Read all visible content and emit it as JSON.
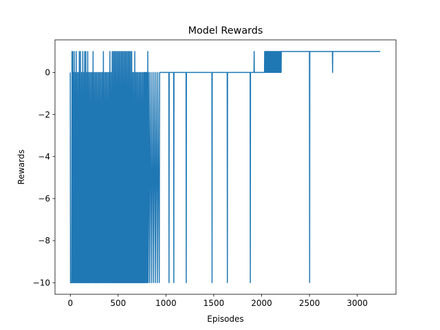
{
  "chart_data": {
    "type": "line",
    "title": "Model Rewards",
    "xlabel": "Episodes",
    "ylabel": "Rewards",
    "xlim": [
      -160,
      3405
    ],
    "ylim": [
      -10.55,
      1.55
    ],
    "xticks": [
      0,
      500,
      1000,
      1500,
      2000,
      2500,
      3000
    ],
    "xtick_labels": [
      "0",
      "500",
      "1000",
      "1500",
      "2000",
      "2500",
      "3000"
    ],
    "yticks": [
      -10,
      -8,
      -6,
      -4,
      -2,
      0
    ],
    "ytick_labels": [
      "−10",
      "−8",
      "−6",
      "−4",
      "−2",
      "0"
    ],
    "grid": false,
    "legend": "none",
    "series": [
      {
        "color": "#1f77b4",
        "points": [
          [
            0,
            0
          ],
          [
            2,
            -10
          ],
          [
            5,
            -10
          ],
          [
            10,
            -10
          ],
          [
            14,
            -10
          ],
          [
            18,
            1
          ],
          [
            22,
            -10
          ],
          [
            26,
            1
          ],
          [
            30,
            -10
          ],
          [
            34,
            0
          ],
          [
            38,
            -10
          ],
          [
            42,
            1
          ],
          [
            46,
            -10
          ],
          [
            50,
            -10
          ],
          [
            54,
            0
          ],
          [
            58,
            -10
          ],
          [
            62,
            1
          ],
          [
            66,
            -10
          ],
          [
            70,
            -10
          ],
          [
            74,
            0
          ],
          [
            78,
            -10
          ],
          [
            82,
            -10
          ],
          [
            86,
            0
          ],
          [
            90,
            -10
          ],
          [
            94,
            1
          ],
          [
            98,
            -10
          ],
          [
            102,
            -10
          ],
          [
            106,
            1
          ],
          [
            110,
            -10
          ],
          [
            114,
            -10
          ],
          [
            118,
            0
          ],
          [
            122,
            -10
          ],
          [
            126,
            -10
          ],
          [
            130,
            1
          ],
          [
            134,
            -10
          ],
          [
            138,
            -10
          ],
          [
            142,
            0
          ],
          [
            146,
            -10
          ],
          [
            150,
            1
          ],
          [
            154,
            -10
          ],
          [
            158,
            -10
          ],
          [
            162,
            1
          ],
          [
            166,
            -10
          ],
          [
            170,
            -10
          ],
          [
            174,
            0
          ],
          [
            178,
            -10
          ],
          [
            182,
            1
          ],
          [
            186,
            -10
          ],
          [
            190,
            -10
          ],
          [
            194,
            0
          ],
          [
            198,
            -10
          ],
          [
            202,
            -10
          ],
          [
            206,
            0
          ],
          [
            210,
            -10
          ],
          [
            214,
            -10
          ],
          [
            218,
            0
          ],
          [
            222,
            -10
          ],
          [
            226,
            -10
          ],
          [
            230,
            0
          ],
          [
            234,
            -10
          ],
          [
            238,
            1
          ],
          [
            242,
            -10
          ],
          [
            246,
            -10
          ],
          [
            250,
            0
          ],
          [
            254,
            -10
          ],
          [
            258,
            -10
          ],
          [
            262,
            0
          ],
          [
            266,
            -10
          ],
          [
            270,
            -10
          ],
          [
            274,
            0
          ],
          [
            278,
            -10
          ],
          [
            282,
            -10
          ],
          [
            286,
            0
          ],
          [
            290,
            -10
          ],
          [
            294,
            -10
          ],
          [
            298,
            0
          ],
          [
            302,
            -10
          ],
          [
            306,
            -10
          ],
          [
            310,
            0
          ],
          [
            314,
            -10
          ],
          [
            318,
            -10
          ],
          [
            322,
            0
          ],
          [
            326,
            -10
          ],
          [
            330,
            -10
          ],
          [
            334,
            0
          ],
          [
            338,
            -10
          ],
          [
            342,
            -10
          ],
          [
            346,
            1
          ],
          [
            350,
            -10
          ],
          [
            354,
            -10
          ],
          [
            358,
            0
          ],
          [
            362,
            -10
          ],
          [
            366,
            -10
          ],
          [
            370,
            0
          ],
          [
            374,
            -10
          ],
          [
            378,
            -10
          ],
          [
            382,
            0
          ],
          [
            386,
            -10
          ],
          [
            390,
            -10
          ],
          [
            394,
            0
          ],
          [
            398,
            -10
          ],
          [
            402,
            -10
          ],
          [
            406,
            0
          ],
          [
            410,
            -10
          ],
          [
            414,
            1
          ],
          [
            418,
            -10
          ],
          [
            422,
            -10
          ],
          [
            426,
            0
          ],
          [
            430,
            -10
          ],
          [
            434,
            -10
          ],
          [
            438,
            1
          ],
          [
            442,
            -10
          ],
          [
            446,
            -10
          ],
          [
            450,
            1
          ],
          [
            454,
            -10
          ],
          [
            458,
            -10
          ],
          [
            462,
            1
          ],
          [
            466,
            -10
          ],
          [
            470,
            -10
          ],
          [
            474,
            1
          ],
          [
            478,
            -10
          ],
          [
            482,
            -10
          ],
          [
            486,
            1
          ],
          [
            490,
            -10
          ],
          [
            494,
            -10
          ],
          [
            498,
            1
          ],
          [
            502,
            -10
          ],
          [
            506,
            -10
          ],
          [
            510,
            1
          ],
          [
            514,
            -10
          ],
          [
            518,
            -10
          ],
          [
            522,
            1
          ],
          [
            526,
            -10
          ],
          [
            530,
            -10
          ],
          [
            534,
            1
          ],
          [
            538,
            -10
          ],
          [
            542,
            -10
          ],
          [
            546,
            1
          ],
          [
            550,
            -10
          ],
          [
            554,
            -10
          ],
          [
            558,
            1
          ],
          [
            562,
            -10
          ],
          [
            566,
            -10
          ],
          [
            570,
            1
          ],
          [
            574,
            -10
          ],
          [
            578,
            -10
          ],
          [
            582,
            1
          ],
          [
            586,
            -10
          ],
          [
            590,
            -10
          ],
          [
            594,
            1
          ],
          [
            598,
            -10
          ],
          [
            602,
            -10
          ],
          [
            606,
            1
          ],
          [
            610,
            -10
          ],
          [
            614,
            -10
          ],
          [
            618,
            1
          ],
          [
            622,
            -10
          ],
          [
            626,
            -10
          ],
          [
            630,
            1
          ],
          [
            634,
            -10
          ],
          [
            638,
            -10
          ],
          [
            642,
            1
          ],
          [
            646,
            -10
          ],
          [
            650,
            -10
          ],
          [
            654,
            0
          ],
          [
            658,
            -10
          ],
          [
            662,
            -10
          ],
          [
            666,
            0
          ],
          [
            670,
            -10
          ],
          [
            674,
            1
          ],
          [
            678,
            -10
          ],
          [
            682,
            -10
          ],
          [
            686,
            0
          ],
          [
            690,
            -10
          ],
          [
            694,
            -10
          ],
          [
            698,
            0
          ],
          [
            702,
            -10
          ],
          [
            706,
            -10
          ],
          [
            710,
            0
          ],
          [
            714,
            -10
          ],
          [
            718,
            -10
          ],
          [
            722,
            0
          ],
          [
            726,
            -10
          ],
          [
            730,
            -10
          ],
          [
            734,
            0
          ],
          [
            738,
            -10
          ],
          [
            742,
            -10
          ],
          [
            746,
            0
          ],
          [
            750,
            -10
          ],
          [
            754,
            -10
          ],
          [
            758,
            0
          ],
          [
            762,
            -10
          ],
          [
            766,
            -10
          ],
          [
            770,
            0
          ],
          [
            774,
            -10
          ],
          [
            778,
            0
          ],
          [
            782,
            -10
          ],
          [
            786,
            0
          ],
          [
            790,
            -10
          ],
          [
            794,
            0
          ],
          [
            798,
            -10
          ],
          [
            802,
            0
          ],
          [
            806,
            -10
          ],
          [
            810,
            1
          ],
          [
            814,
            -10
          ],
          [
            818,
            0
          ],
          [
            830,
            -10
          ],
          [
            834,
            0
          ],
          [
            850,
            -10
          ],
          [
            854,
            0
          ],
          [
            870,
            -10
          ],
          [
            874,
            0
          ],
          [
            890,
            -10
          ],
          [
            894,
            0
          ],
          [
            910,
            -10
          ],
          [
            914,
            0
          ],
          [
            930,
            -10
          ],
          [
            934,
            0
          ],
          [
            1030,
            0
          ],
          [
            1032,
            -10
          ],
          [
            1034,
            0
          ],
          [
            1080,
            0
          ],
          [
            1082,
            -10
          ],
          [
            1084,
            0
          ],
          [
            1210,
            0
          ],
          [
            1212,
            -10
          ],
          [
            1214,
            0
          ],
          [
            1480,
            0
          ],
          [
            1482,
            -10
          ],
          [
            1484,
            0
          ],
          [
            1640,
            0
          ],
          [
            1642,
            -10
          ],
          [
            1644,
            0
          ],
          [
            1880,
            0
          ],
          [
            1882,
            -10
          ],
          [
            1884,
            0
          ],
          [
            1920,
            0
          ],
          [
            1922,
            1
          ],
          [
            1924,
            0
          ],
          [
            2030,
            0
          ],
          [
            2032,
            1
          ],
          [
            2036,
            0
          ],
          [
            2040,
            1
          ],
          [
            2044,
            0
          ],
          [
            2048,
            1
          ],
          [
            2052,
            0
          ],
          [
            2056,
            1
          ],
          [
            2060,
            0
          ],
          [
            2064,
            1
          ],
          [
            2068,
            0
          ],
          [
            2072,
            1
          ],
          [
            2076,
            0
          ],
          [
            2080,
            1
          ],
          [
            2084,
            0
          ],
          [
            2088,
            1
          ],
          [
            2092,
            0
          ],
          [
            2096,
            1
          ],
          [
            2100,
            0
          ],
          [
            2104,
            1
          ],
          [
            2108,
            0
          ],
          [
            2112,
            1
          ],
          [
            2116,
            0
          ],
          [
            2120,
            1
          ],
          [
            2124,
            0
          ],
          [
            2128,
            1
          ],
          [
            2132,
            0
          ],
          [
            2136,
            1
          ],
          [
            2140,
            0
          ],
          [
            2144,
            1
          ],
          [
            2148,
            0
          ],
          [
            2152,
            1
          ],
          [
            2156,
            0
          ],
          [
            2160,
            1
          ],
          [
            2164,
            0
          ],
          [
            2168,
            1
          ],
          [
            2172,
            0
          ],
          [
            2176,
            1
          ],
          [
            2180,
            0
          ],
          [
            2184,
            1
          ],
          [
            2188,
            0
          ],
          [
            2192,
            1
          ],
          [
            2196,
            0
          ],
          [
            2200,
            1
          ],
          [
            2204,
            0
          ],
          [
            2206,
            1
          ],
          [
            2500,
            1
          ],
          [
            2502,
            -10
          ],
          [
            2504,
            1
          ],
          [
            2740,
            1
          ],
          [
            2742,
            0
          ],
          [
            2744,
            1
          ],
          [
            3240,
            1
          ]
        ]
      }
    ]
  }
}
